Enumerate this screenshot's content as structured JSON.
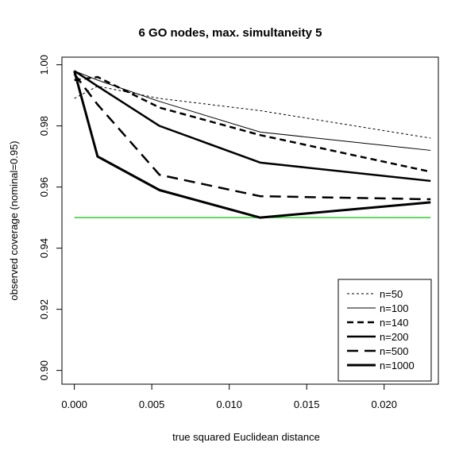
{
  "chart_data": {
    "type": "line",
    "title": "6 GO nodes, max. simultaneity 5",
    "xlabel": "true squared Euclidean distance",
    "ylabel": "observed coverage (nominal=0.95)",
    "xlim": [
      -0.0008,
      0.0235
    ],
    "ylim": [
      0.8955,
      1.0025
    ],
    "xticks": [
      "0.000",
      "0.005",
      "0.010",
      "0.015",
      "0.020"
    ],
    "yticks": [
      "0.90",
      "0.92",
      "0.94",
      "0.96",
      "0.98",
      "1.00"
    ],
    "x": [
      0.0,
      0.0015,
      0.0055,
      0.012,
      0.023
    ],
    "reference_line": {
      "y": 0.95,
      "color": "#33cc33"
    },
    "legend_position": "bottom-right",
    "series": [
      {
        "name": "n=50",
        "values": [
          0.989,
          0.993,
          0.989,
          0.985,
          0.976
        ],
        "stroke": "thin-dotted"
      },
      {
        "name": "n=100",
        "values": [
          0.998,
          0.995,
          0.988,
          0.978,
          0.972
        ],
        "stroke": "thin-solid"
      },
      {
        "name": "n=140",
        "values": [
          0.995,
          0.996,
          0.986,
          0.977,
          0.965
        ],
        "stroke": "thick-dashed"
      },
      {
        "name": "n=200",
        "values": [
          0.998,
          0.993,
          0.98,
          0.968,
          0.962
        ],
        "stroke": "thick-solid"
      },
      {
        "name": "n=500",
        "values": [
          0.997,
          0.987,
          0.964,
          0.957,
          0.956
        ],
        "stroke": "thick-long-dash"
      },
      {
        "name": "n=1000",
        "values": [
          0.998,
          0.97,
          0.959,
          0.95,
          0.955
        ],
        "stroke": "thickest-solid"
      }
    ]
  }
}
